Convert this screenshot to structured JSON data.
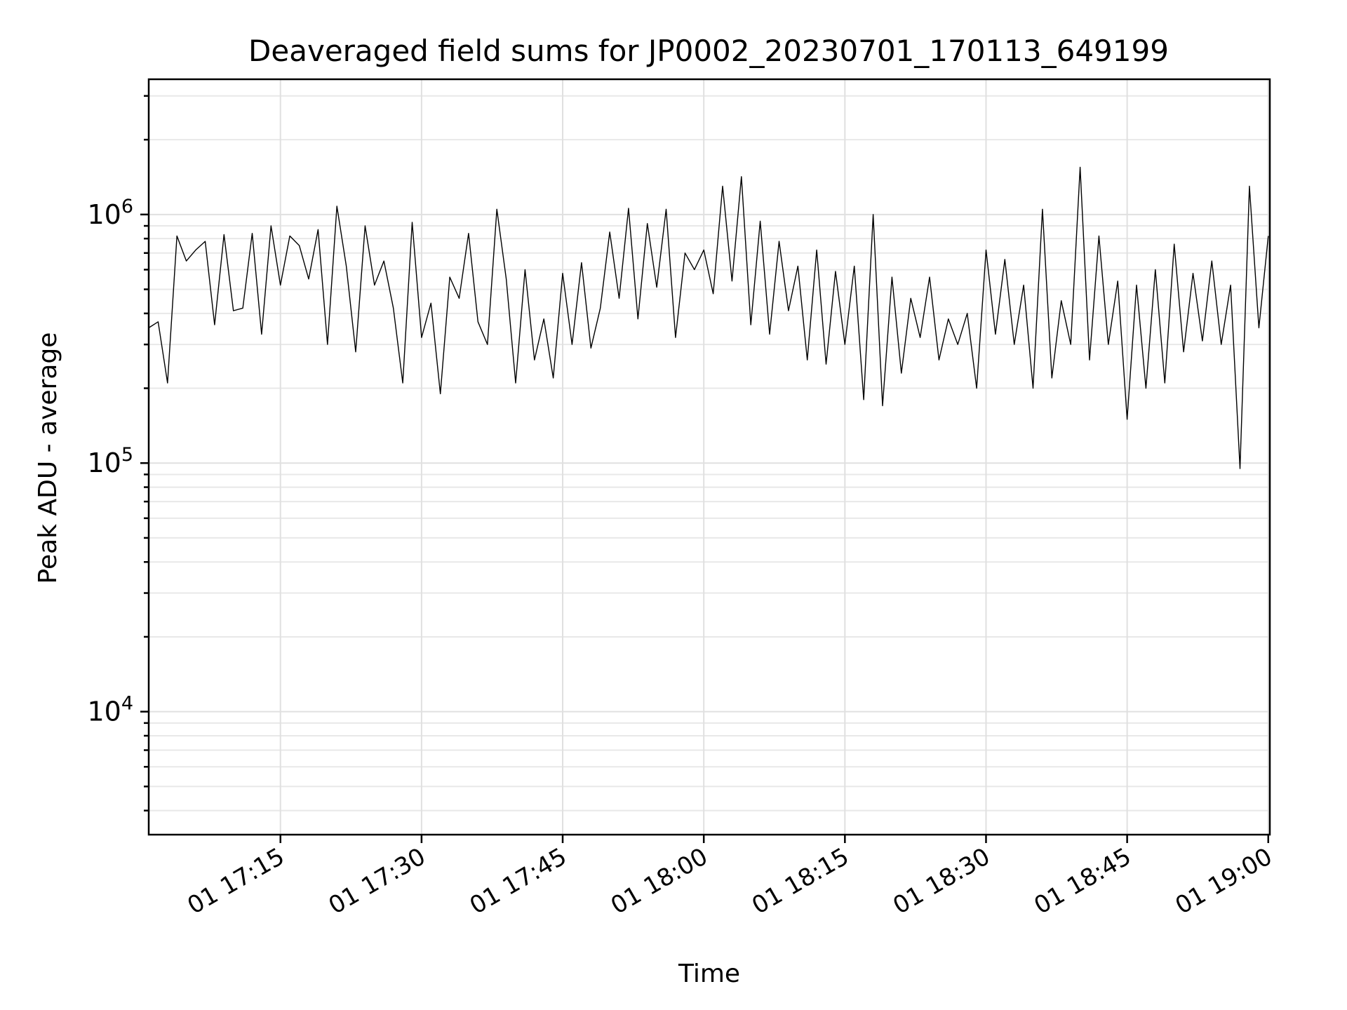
{
  "chart_data": {
    "type": "line",
    "title": "Deaveraged field sums for JP0002_20230701_170113_649199",
    "xlabel": "Time",
    "ylabel": "Peak ADU - average",
    "y_scale": "log",
    "grid": true,
    "xlim": [
      "2023-07-01 17:01:00",
      "2023-07-01 19:00:10"
    ],
    "ylim": [
      3200,
      3500000
    ],
    "x_ticks": [
      {
        "time": "2023-07-01 17:15:00",
        "label": "01 17:15"
      },
      {
        "time": "2023-07-01 17:30:00",
        "label": "01 17:30"
      },
      {
        "time": "2023-07-01 17:45:00",
        "label": "01 17:45"
      },
      {
        "time": "2023-07-01 18:00:00",
        "label": "01 18:00"
      },
      {
        "time": "2023-07-01 18:15:00",
        "label": "01 18:15"
      },
      {
        "time": "2023-07-01 18:30:00",
        "label": "01 18:30"
      },
      {
        "time": "2023-07-01 18:45:00",
        "label": "01 18:45"
      },
      {
        "time": "2023-07-01 19:00:00",
        "label": "01 19:00"
      }
    ],
    "y_ticks": [
      {
        "value": 10000,
        "base": "10",
        "exp": "4"
      },
      {
        "value": 100000,
        "base": "10",
        "exp": "5"
      },
      {
        "value": 1000000,
        "base": "10",
        "exp": "6"
      }
    ],
    "series": [
      {
        "color": "#000000",
        "points": [
          [
            "17:01:00",
            350000
          ],
          [
            "17:02:00",
            370000
          ],
          [
            "17:03:00",
            210000
          ],
          [
            "17:04:00",
            820000
          ],
          [
            "17:05:00",
            650000
          ],
          [
            "17:06:00",
            720000
          ],
          [
            "17:07:00",
            780000
          ],
          [
            "17:08:00",
            360000
          ],
          [
            "17:09:00",
            830000
          ],
          [
            "17:10:00",
            410000
          ],
          [
            "17:11:00",
            420000
          ],
          [
            "17:12:00",
            840000
          ],
          [
            "17:13:00",
            330000
          ],
          [
            "17:14:00",
            900000
          ],
          [
            "17:15:00",
            520000
          ],
          [
            "17:16:00",
            820000
          ],
          [
            "17:17:00",
            750000
          ],
          [
            "17:18:00",
            550000
          ],
          [
            "17:19:00",
            870000
          ],
          [
            "17:20:00",
            300000
          ],
          [
            "17:21:00",
            1080000
          ],
          [
            "17:22:00",
            620000
          ],
          [
            "17:23:00",
            280000
          ],
          [
            "17:24:00",
            900000
          ],
          [
            "17:25:00",
            520000
          ],
          [
            "17:26:00",
            650000
          ],
          [
            "17:27:00",
            420000
          ],
          [
            "17:28:00",
            210000
          ],
          [
            "17:29:00",
            930000
          ],
          [
            "17:30:00",
            320000
          ],
          [
            "17:31:00",
            440000
          ],
          [
            "17:32:00",
            190000
          ],
          [
            "17:33:00",
            560000
          ],
          [
            "17:34:00",
            460000
          ],
          [
            "17:35:00",
            840000
          ],
          [
            "17:36:00",
            370000
          ],
          [
            "17:37:00",
            300000
          ],
          [
            "17:38:00",
            1050000
          ],
          [
            "17:39:00",
            550000
          ],
          [
            "17:40:00",
            210000
          ],
          [
            "17:41:00",
            600000
          ],
          [
            "17:42:00",
            260000
          ],
          [
            "17:43:00",
            380000
          ],
          [
            "17:44:00",
            220000
          ],
          [
            "17:45:00",
            580000
          ],
          [
            "17:46:00",
            300000
          ],
          [
            "17:47:00",
            640000
          ],
          [
            "17:48:00",
            290000
          ],
          [
            "17:49:00",
            420000
          ],
          [
            "17:50:00",
            850000
          ],
          [
            "17:51:00",
            460000
          ],
          [
            "17:52:00",
            1060000
          ],
          [
            "17:53:00",
            380000
          ],
          [
            "17:54:00",
            920000
          ],
          [
            "17:55:00",
            510000
          ],
          [
            "17:56:00",
            1050000
          ],
          [
            "17:57:00",
            320000
          ],
          [
            "17:58:00",
            700000
          ],
          [
            "17:59:00",
            600000
          ],
          [
            "18:00:00",
            720000
          ],
          [
            "18:01:00",
            480000
          ],
          [
            "18:02:00",
            1300000
          ],
          [
            "18:03:00",
            540000
          ],
          [
            "18:04:00",
            1420000
          ],
          [
            "18:05:00",
            360000
          ],
          [
            "18:06:00",
            940000
          ],
          [
            "18:07:00",
            330000
          ],
          [
            "18:08:00",
            780000
          ],
          [
            "18:09:00",
            410000
          ],
          [
            "18:10:00",
            620000
          ],
          [
            "18:11:00",
            260000
          ],
          [
            "18:12:00",
            720000
          ],
          [
            "18:13:00",
            250000
          ],
          [
            "18:14:00",
            590000
          ],
          [
            "18:15:00",
            300000
          ],
          [
            "18:16:00",
            620000
          ],
          [
            "18:17:00",
            180000
          ],
          [
            "18:18:00",
            1000000
          ],
          [
            "18:19:00",
            170000
          ],
          [
            "18:20:00",
            560000
          ],
          [
            "18:21:00",
            230000
          ],
          [
            "18:22:00",
            460000
          ],
          [
            "18:23:00",
            320000
          ],
          [
            "18:24:00",
            560000
          ],
          [
            "18:25:00",
            260000
          ],
          [
            "18:26:00",
            380000
          ],
          [
            "18:27:00",
            300000
          ],
          [
            "18:28:00",
            400000
          ],
          [
            "18:29:00",
            200000
          ],
          [
            "18:30:00",
            720000
          ],
          [
            "18:31:00",
            330000
          ],
          [
            "18:32:00",
            660000
          ],
          [
            "18:33:00",
            300000
          ],
          [
            "18:34:00",
            520000
          ],
          [
            "18:35:00",
            200000
          ],
          [
            "18:36:00",
            1050000
          ],
          [
            "18:37:00",
            220000
          ],
          [
            "18:38:00",
            450000
          ],
          [
            "18:39:00",
            300000
          ],
          [
            "18:40:00",
            1550000
          ],
          [
            "18:41:00",
            260000
          ],
          [
            "18:42:00",
            820000
          ],
          [
            "18:43:00",
            300000
          ],
          [
            "18:44:00",
            540000
          ],
          [
            "18:45:00",
            150000
          ],
          [
            "18:46:00",
            520000
          ],
          [
            "18:47:00",
            200000
          ],
          [
            "18:48:00",
            600000
          ],
          [
            "18:49:00",
            210000
          ],
          [
            "18:50:00",
            760000
          ],
          [
            "18:51:00",
            280000
          ],
          [
            "18:52:00",
            580000
          ],
          [
            "18:53:00",
            310000
          ],
          [
            "18:54:00",
            650000
          ],
          [
            "18:55:00",
            300000
          ],
          [
            "18:56:00",
            520000
          ],
          [
            "18:57:00",
            95000
          ],
          [
            "18:58:00",
            1300000
          ],
          [
            "18:59:00",
            350000
          ],
          [
            "19:00:00",
            820000
          ]
        ]
      }
    ]
  }
}
